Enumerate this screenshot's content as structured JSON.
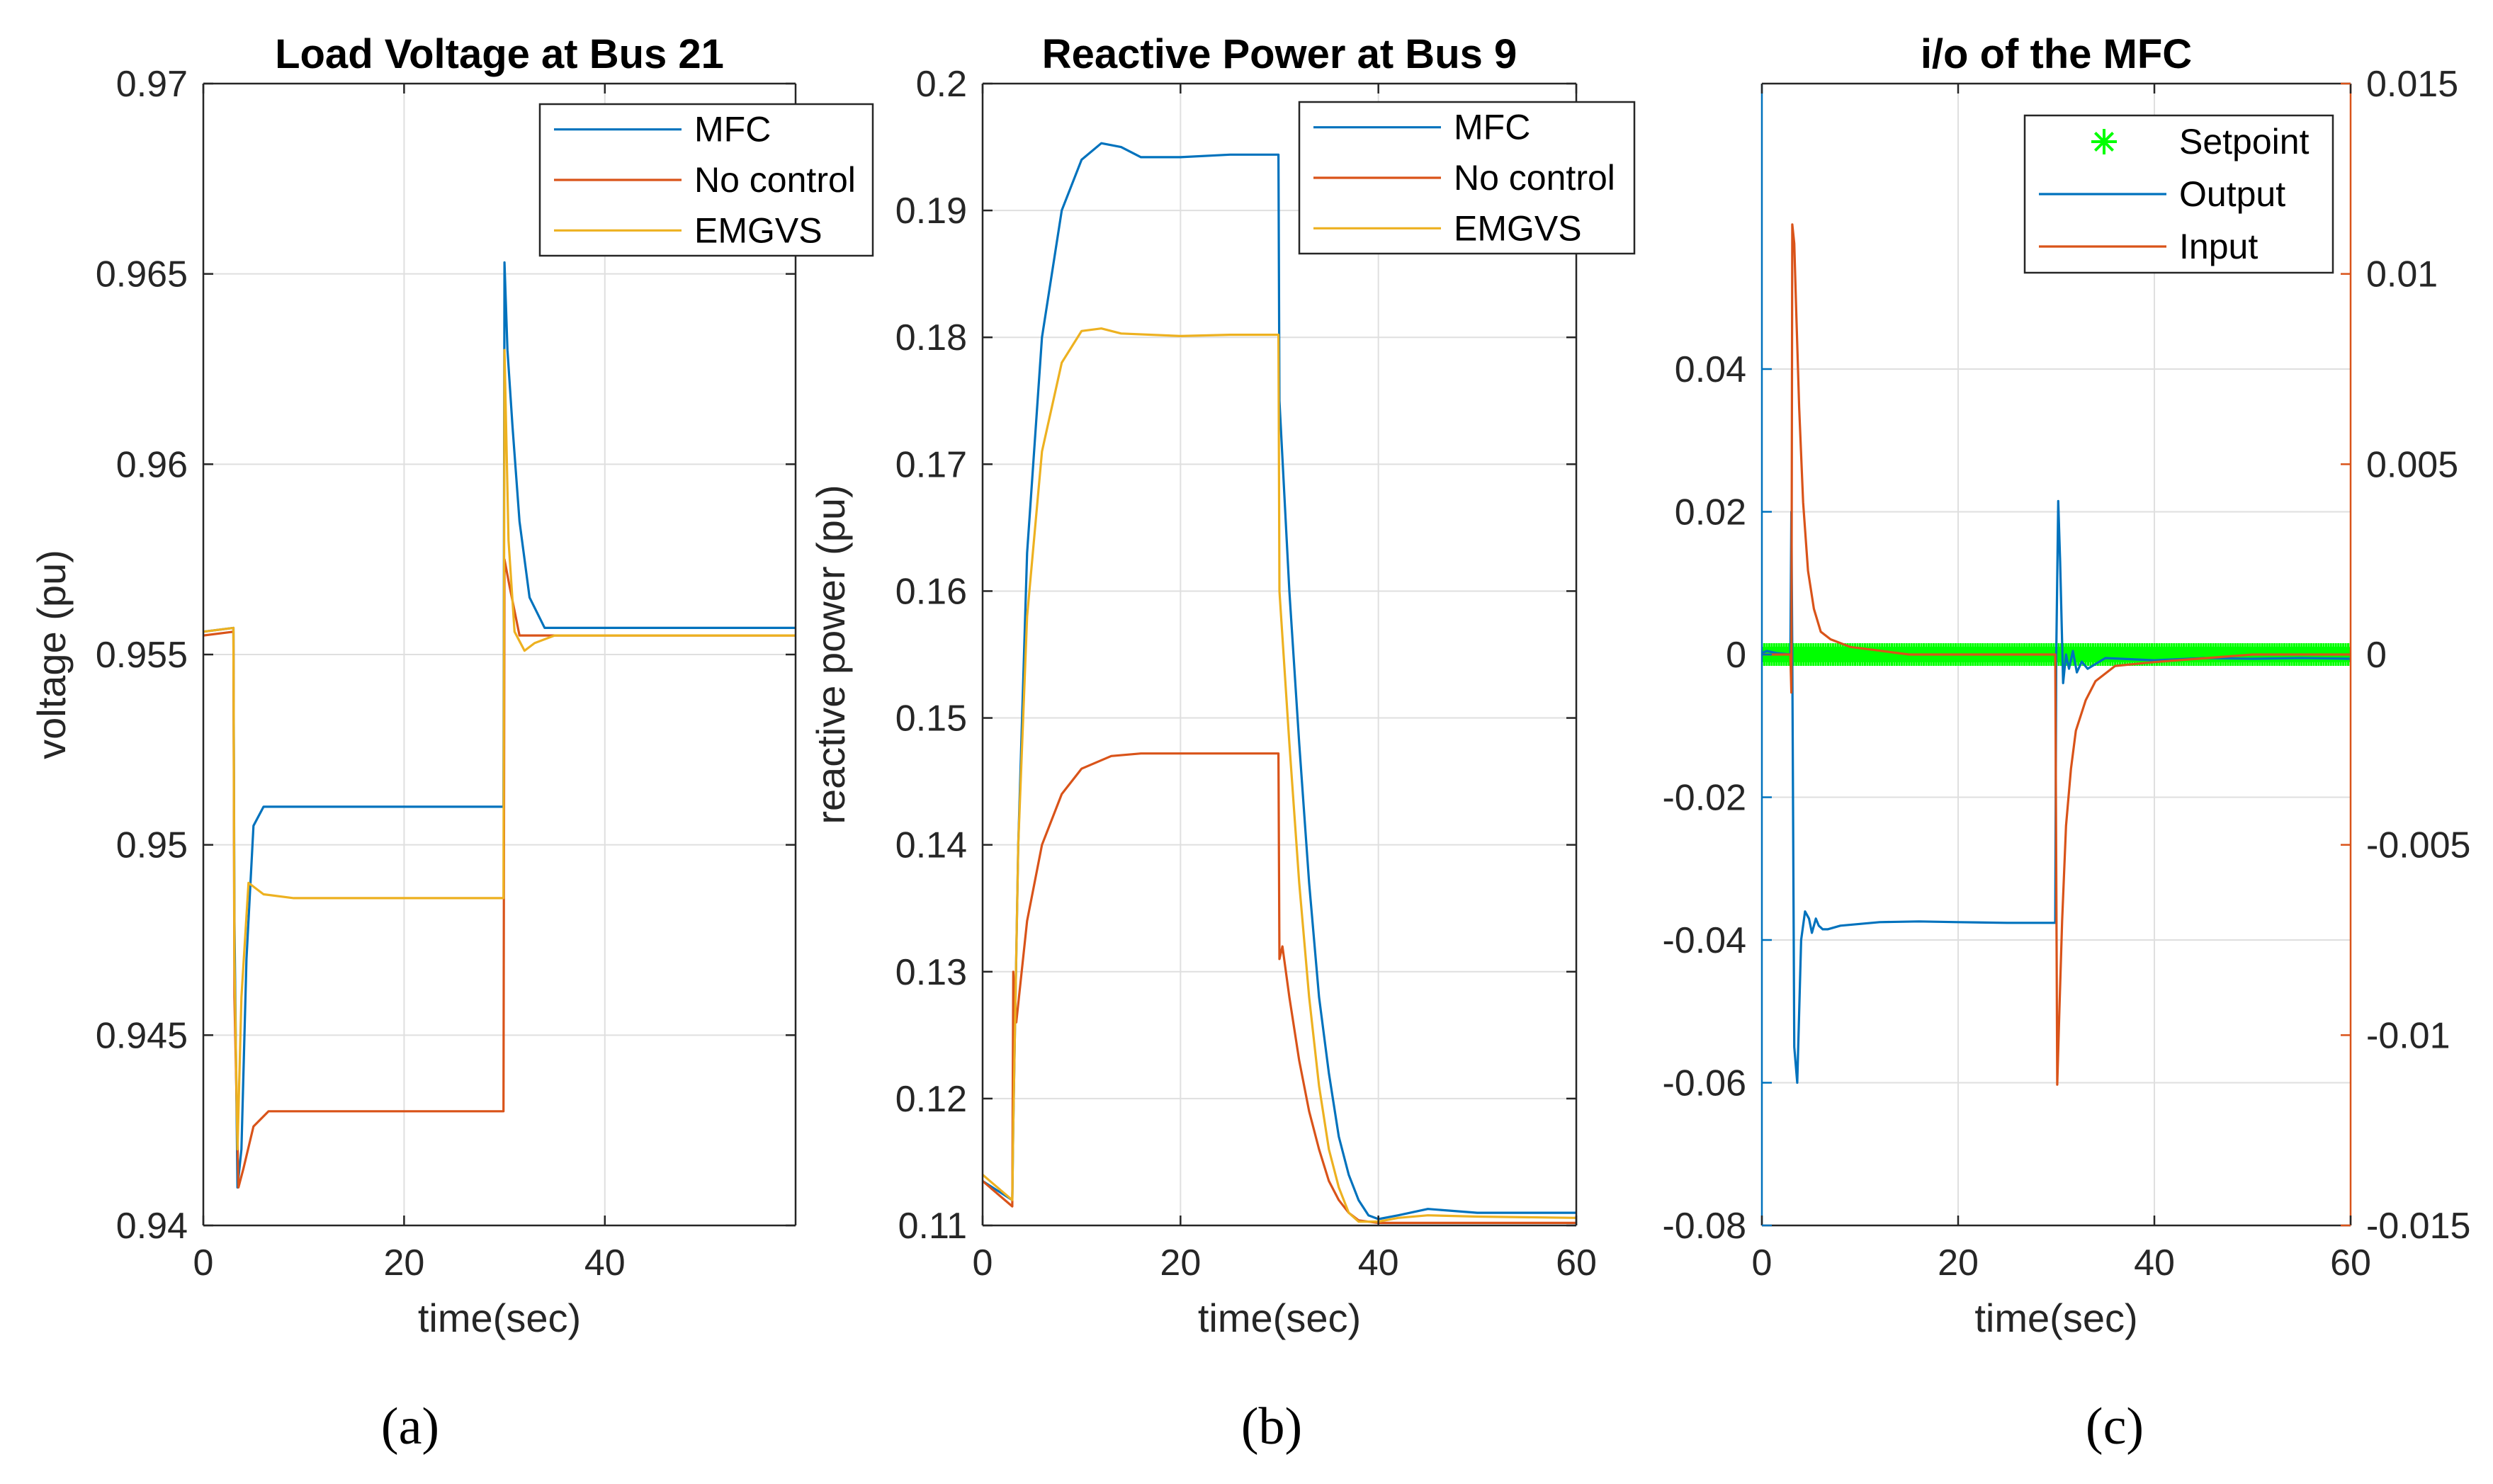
{
  "colors": {
    "mfc": "#0072BD",
    "no_control": "#D95319",
    "emgvs": "#EDB120",
    "setpoint": "#00FF00",
    "axis": "#262626",
    "grid": "#dfdfdf"
  },
  "chart_data": [
    {
      "type": "line",
      "title": "Load Voltage at Bus 21",
      "xlabel": "time(sec)",
      "ylabel": "voltage (pu)",
      "xlim": [
        0,
        59
      ],
      "ylim": [
        0.94,
        0.97
      ],
      "xticks": [
        0,
        20,
        40
      ],
      "yticks": [
        0.94,
        0.945,
        0.95,
        0.955,
        0.96,
        0.965,
        0.97
      ],
      "grid": true,
      "legend_position": "top-right",
      "panel_label": "a",
      "series": [
        {
          "name": "MFC",
          "color": "#0072BD",
          "x": [
            0,
            3,
            3.1,
            3.4,
            3.8,
            4.3,
            5,
            6,
            8,
            15,
            29.9,
            30,
            30.3,
            30.8,
            31.5,
            32.5,
            34,
            59
          ],
          "y": [
            0.9556,
            0.9557,
            0.948,
            0.941,
            0.942,
            0.947,
            0.9505,
            0.951,
            0.951,
            0.951,
            0.951,
            0.9653,
            0.963,
            0.961,
            0.9585,
            0.9565,
            0.9557,
            0.9557
          ]
        },
        {
          "name": "No control",
          "color": "#D95319",
          "x": [
            0,
            3,
            3.1,
            3.5,
            4,
            5,
            6.5,
            9,
            15,
            29.9,
            30,
            30.5,
            31.5,
            33,
            59
          ],
          "y": [
            0.9555,
            0.9556,
            0.946,
            0.941,
            0.9415,
            0.9426,
            0.943,
            0.943,
            0.943,
            0.943,
            0.9575,
            0.9568,
            0.9555,
            0.9555,
            0.9555
          ]
        },
        {
          "name": "EMGVS",
          "color": "#EDB120",
          "x": [
            0,
            3,
            3.1,
            3.4,
            3.8,
            4.5,
            6,
            9,
            15,
            29.9,
            30,
            30.4,
            31,
            32,
            33,
            35,
            59
          ],
          "y": [
            0.9556,
            0.9557,
            0.947,
            0.942,
            0.946,
            0.949,
            0.9487,
            0.9486,
            0.9486,
            0.9486,
            0.963,
            0.958,
            0.9556,
            0.9551,
            0.9553,
            0.9555,
            0.9555
          ]
        }
      ]
    },
    {
      "type": "line",
      "title": "Reactive Power at Bus 9",
      "xlabel": "time(sec)",
      "ylabel": "reactive power (pu)",
      "xlim": [
        0,
        60
      ],
      "ylim": [
        0.11,
        0.2
      ],
      "xticks": [
        0,
        20,
        40,
        60
      ],
      "yticks": [
        0.11,
        0.12,
        0.13,
        0.14,
        0.15,
        0.16,
        0.17,
        0.18,
        0.19,
        0.2
      ],
      "grid": true,
      "legend_position": "top-right",
      "panel_label": "b",
      "series": [
        {
          "name": "MFC",
          "color": "#0072BD",
          "x": [
            0,
            3,
            3.1,
            3.6,
            4.5,
            6,
            8,
            10,
            12,
            14,
            16,
            20,
            25,
            29.9,
            30,
            31,
            32,
            33,
            34,
            35,
            36,
            37,
            38,
            39,
            40,
            42,
            45,
            50,
            55,
            60
          ],
          "y": [
            0.1135,
            0.112,
            0.118,
            0.14,
            0.163,
            0.18,
            0.19,
            0.194,
            0.1953,
            0.195,
            0.1942,
            0.1942,
            0.1944,
            0.1944,
            0.175,
            0.16,
            0.148,
            0.137,
            0.128,
            0.122,
            0.117,
            0.114,
            0.112,
            0.1108,
            0.1105,
            0.1108,
            0.1113,
            0.111,
            0.111,
            0.111
          ]
        },
        {
          "name": "No control",
          "color": "#D95319",
          "x": [
            0,
            3,
            3.1,
            3.4,
            4.5,
            6,
            8,
            10,
            13,
            16,
            20,
            29.8,
            29.9,
            30,
            30.3,
            31,
            32,
            33,
            34,
            35,
            36,
            37,
            38,
            40,
            45,
            60
          ],
          "y": [
            0.1135,
            0.1115,
            0.13,
            0.126,
            0.134,
            0.14,
            0.144,
            0.146,
            0.147,
            0.1472,
            0.1472,
            0.1472,
            0.1472,
            0.131,
            0.132,
            0.128,
            0.123,
            0.119,
            0.116,
            0.1135,
            0.112,
            0.111,
            0.1104,
            0.1102,
            0.1102,
            0.1102
          ]
        },
        {
          "name": "EMGVS",
          "color": "#EDB120",
          "x": [
            0,
            3,
            3.1,
            3.6,
            4.5,
            6,
            8,
            10,
            12,
            14,
            20,
            25,
            29.9,
            30,
            31,
            32,
            33,
            34,
            35,
            36,
            37,
            38,
            40,
            42,
            45,
            50,
            60
          ],
          "y": [
            0.114,
            0.112,
            0.118,
            0.14,
            0.158,
            0.171,
            0.178,
            0.1805,
            0.1807,
            0.1803,
            0.1801,
            0.1802,
            0.1802,
            0.16,
            0.148,
            0.137,
            0.128,
            0.121,
            0.116,
            0.113,
            0.111,
            0.1103,
            0.1103,
            0.1106,
            0.1108,
            0.1107,
            0.1106
          ]
        }
      ]
    },
    {
      "type": "line",
      "title": "i/o of the MFC",
      "xlabel": "time(sec)",
      "ylabel": "",
      "xlim": [
        0,
        60
      ],
      "ylim": [
        -0.08,
        0.08
      ],
      "ylim_right": [
        -0.015,
        0.015
      ],
      "xticks": [
        0,
        20,
        40,
        60
      ],
      "yticks": [
        -0.08,
        -0.06,
        -0.04,
        -0.02,
        0,
        0.02,
        0.04
      ],
      "yticks_right": [
        -0.015,
        -0.01,
        -0.005,
        0,
        0.005,
        0.01,
        0.015
      ],
      "grid": true,
      "legend_position": "top-right",
      "panel_label": "c",
      "series": [
        {
          "name": "Setpoint",
          "axis": "left",
          "color": "#00FF00",
          "marker": "*",
          "x_start": 0,
          "x_end": 60,
          "x_step": 0.25,
          "value": 0
        },
        {
          "name": "Output",
          "axis": "left",
          "color": "#0072BD",
          "x": [
            0,
            0.5,
            1.5,
            2.9,
            3.0,
            3.1,
            3.3,
            3.6,
            4,
            4.4,
            4.8,
            5.1,
            5.5,
            5.8,
            6.2,
            6.7,
            8,
            12,
            16,
            20,
            25,
            29.9,
            30,
            30.2,
            30.4,
            30.7,
            31,
            31.3,
            31.7,
            32.1,
            32.6,
            33.2,
            35,
            40,
            45,
            50,
            55,
            60
          ],
          "y": [
            0.0002,
            0.0005,
            0.0002,
            0.0,
            0.02,
            0.0,
            -0.055,
            -0.06,
            -0.04,
            -0.036,
            -0.037,
            -0.039,
            -0.037,
            -0.038,
            -0.0385,
            -0.0385,
            -0.038,
            -0.0375,
            -0.0374,
            -0.0375,
            -0.0376,
            -0.0376,
            0.0,
            0.0215,
            0.013,
            -0.004,
            0.0,
            -0.002,
            0.0005,
            -0.0025,
            -0.001,
            -0.002,
            -0.0005,
            -0.0008,
            -0.0005,
            -0.0006,
            -0.0005,
            -0.0006
          ]
        },
        {
          "name": "Input",
          "axis": "right",
          "color": "#D95319",
          "x": [
            0,
            2.9,
            3.0,
            3.1,
            3.3,
            3.5,
            3.8,
            4.2,
            4.7,
            5.3,
            6,
            7,
            9,
            12,
            15,
            20,
            25,
            29.8,
            29.9,
            30.1,
            30.3,
            30.6,
            31,
            31.5,
            32,
            33,
            34,
            36,
            40,
            45,
            50,
            55,
            60
          ],
          "y": [
            0.0,
            0.0,
            -0.001,
            0.0113,
            0.0108,
            0.009,
            0.0065,
            0.004,
            0.0022,
            0.0012,
            0.0006,
            0.0004,
            0.0002,
            0.0001,
            0.0,
            0.0,
            0.0,
            0.0,
            0.0,
            -0.0113,
            -0.0095,
            -0.007,
            -0.0045,
            -0.003,
            -0.002,
            -0.0012,
            -0.0007,
            -0.0003,
            -0.0002,
            -0.0001,
            0.0,
            0.0,
            0.0
          ]
        }
      ]
    }
  ],
  "panel_labels": [
    "(a)",
    "(b)",
    "(c)"
  ]
}
